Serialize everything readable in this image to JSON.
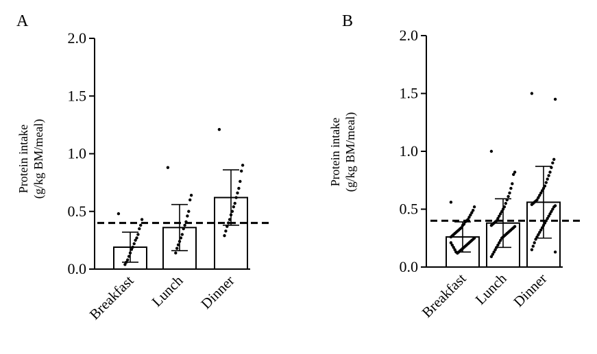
{
  "chart_data": [
    {
      "panel": "A",
      "type": "bar",
      "ylabel_line1": "Protein intake",
      "ylabel_line2": "(g/kg BM/meal)",
      "ylim": [
        0,
        2.0
      ],
      "yticks": [
        0.0,
        0.5,
        1.0,
        1.5,
        2.0
      ],
      "ytick_labels": [
        "0.0",
        "0.5",
        "1.0",
        "1.5",
        "2.0"
      ],
      "reference_line": 0.4,
      "categories": [
        "Breakfast",
        "Lunch",
        "Dinner"
      ],
      "means": [
        0.19,
        0.36,
        0.62
      ],
      "sd": [
        0.13,
        0.2,
        0.24
      ],
      "points": [
        [
          0.48,
          0.43,
          0.38,
          0.35,
          0.3,
          0.27,
          0.25,
          0.22,
          0.19,
          0.17,
          0.14,
          0.11,
          0.08,
          0.06,
          0.04
        ],
        [
          0.88,
          0.64,
          0.6,
          0.5,
          0.46,
          0.41,
          0.38,
          0.35,
          0.3,
          0.27,
          0.24,
          0.21,
          0.18,
          0.14
        ],
        [
          1.21,
          0.9,
          0.85,
          0.76,
          0.7,
          0.66,
          0.62,
          0.57,
          0.54,
          0.5,
          0.47,
          0.43,
          0.4,
          0.37,
          0.33,
          0.29
        ]
      ]
    },
    {
      "panel": "B",
      "type": "bar",
      "ylabel_line1": "Protein intake",
      "ylabel_line2": "(g/kg BM/meal)",
      "ylim": [
        0,
        2.0
      ],
      "yticks": [
        0.0,
        0.5,
        1.0,
        1.5,
        2.0
      ],
      "ytick_labels": [
        "0.0",
        "0.5",
        "1.0",
        "1.5",
        "2.0"
      ],
      "reference_line": 0.4,
      "categories": [
        "Breakfast",
        "Lunch",
        "Dinner"
      ],
      "means": [
        0.26,
        0.38,
        0.56
      ],
      "sd": [
        0.13,
        0.21,
        0.31
      ],
      "points": [
        [
          0.56,
          0.52,
          0.49,
          0.47,
          0.45,
          0.43,
          0.41,
          0.4,
          0.39,
          0.37,
          0.36,
          0.34,
          0.33,
          0.32,
          0.31,
          0.3,
          0.29,
          0.28,
          0.27,
          0.26,
          0.25,
          0.24,
          0.23,
          0.22,
          0.21,
          0.2,
          0.19,
          0.18,
          0.17,
          0.16,
          0.15,
          0.14,
          0.13,
          0.12,
          0.13,
          0.15,
          0.17,
          0.19,
          0.21
        ],
        [
          1.0,
          0.82,
          0.8,
          0.72,
          0.68,
          0.64,
          0.61,
          0.58,
          0.55,
          0.52,
          0.5,
          0.48,
          0.46,
          0.44,
          0.42,
          0.4,
          0.39,
          0.38,
          0.37,
          0.36,
          0.35,
          0.34,
          0.33,
          0.32,
          0.31,
          0.3,
          0.29,
          0.28,
          0.27,
          0.26,
          0.25,
          0.23,
          0.21,
          0.19,
          0.17,
          0.15,
          0.13,
          0.11,
          0.09
        ],
        [
          1.5,
          1.45,
          0.93,
          0.9,
          0.86,
          0.82,
          0.79,
          0.76,
          0.73,
          0.7,
          0.68,
          0.66,
          0.64,
          0.62,
          0.6,
          0.58,
          0.57,
          0.56,
          0.55,
          0.54,
          0.53,
          0.52,
          0.5,
          0.48,
          0.46,
          0.44,
          0.42,
          0.4,
          0.38,
          0.36,
          0.34,
          0.32,
          0.3,
          0.28,
          0.26,
          0.24,
          0.21,
          0.18,
          0.15,
          0.13
        ]
      ]
    }
  ]
}
